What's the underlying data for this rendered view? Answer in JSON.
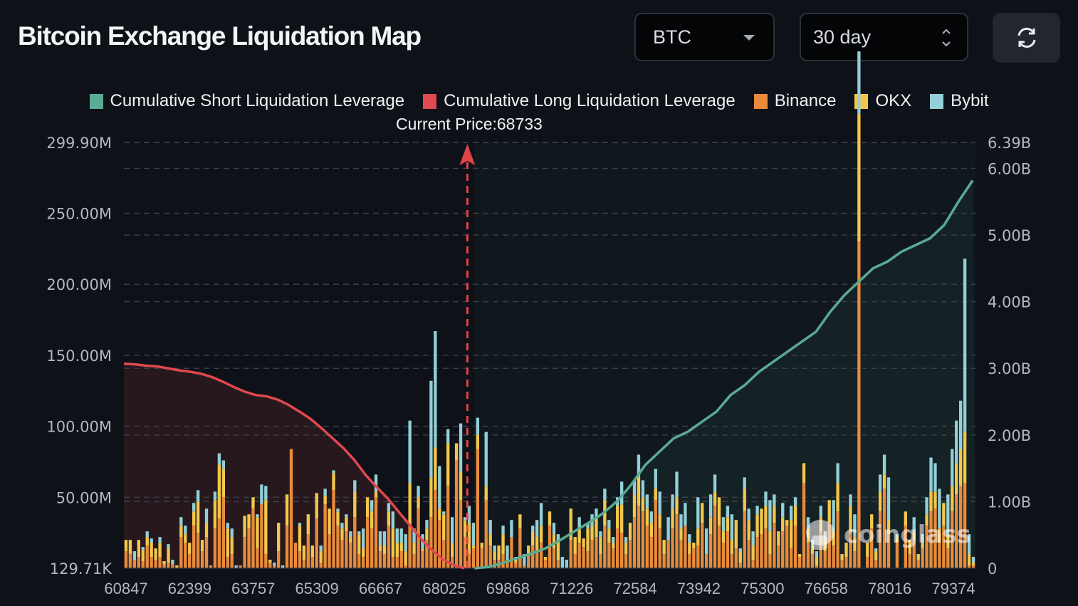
{
  "header": {
    "title": "Bitcoin Exchange Liquidation Map",
    "coin_select": {
      "value": "BTC",
      "icon": "caret-down-icon"
    },
    "range_select": {
      "value": "30 day",
      "icon": "up-down-chevron-icon"
    },
    "refresh_button": {
      "icon": "refresh-icon"
    }
  },
  "watermark": "coinglass",
  "colors": {
    "background": "#0e1117",
    "short_line": "#5aab94",
    "long_line": "#e0494f",
    "binance": "#e88b3a",
    "okx": "#f3c74a",
    "bybit": "#93cfd6"
  },
  "chart_data": {
    "type": "bar",
    "title": "Bitcoin Exchange Liquidation Map",
    "legend": [
      {
        "name": "Cumulative Short Liquidation Leverage",
        "color": "#5aab94"
      },
      {
        "name": "Cumulative Long Liquidation Leverage",
        "color": "#e0494f"
      },
      {
        "name": "Binance",
        "color": "#e88b3a"
      },
      {
        "name": "OKX",
        "color": "#f3c74a"
      },
      {
        "name": "Bybit",
        "color": "#93cfd6"
      }
    ],
    "legend_position": "top-center",
    "current_price": {
      "label": "Current Price:",
      "value": 68733
    },
    "x_ticks": [
      "60847",
      "62399",
      "63757",
      "65309",
      "66667",
      "68025",
      "69868",
      "71226",
      "72584",
      "73942",
      "75300",
      "76658",
      "78016",
      "79374"
    ],
    "x_range": [
      60847,
      80400
    ],
    "y_left": {
      "ticks": [
        "129.71K",
        "50.00M",
        "100.00M",
        "150.00M",
        "200.00M",
        "250.00M",
        "299.90M"
      ],
      "tick_values": [
        0.13,
        50,
        100,
        150,
        200,
        250,
        299.9
      ],
      "range": [
        0,
        299.9
      ],
      "unit": "M"
    },
    "y_right": {
      "ticks": [
        "0",
        "1.00B",
        "2.00B",
        "3.00B",
        "4.00B",
        "5.00B",
        "6.00B",
        "6.39B"
      ],
      "tick_values": [
        0,
        1,
        2,
        3,
        4,
        5,
        6,
        6.39
      ],
      "range": [
        0,
        6.39
      ],
      "unit": "B"
    },
    "grid": true,
    "bars_note": "Stacked per price bucket, values in millions (Binance, OKX, Bybit), approximated from pixels",
    "bars": [
      [
        12,
        8,
        0
      ],
      [
        10,
        10,
        0
      ],
      [
        6,
        0,
        6
      ],
      [
        8,
        12,
        0
      ],
      [
        5,
        8,
        2
      ],
      [
        16,
        6,
        4
      ],
      [
        8,
        10,
        3
      ],
      [
        6,
        8,
        0
      ],
      [
        8,
        10,
        4
      ],
      [
        3,
        2,
        0
      ],
      [
        4,
        10,
        3
      ],
      [
        3,
        0,
        3
      ],
      [
        0,
        2,
        0
      ],
      [
        22,
        8,
        6
      ],
      [
        18,
        6,
        6
      ],
      [
        10,
        8,
        0
      ],
      [
        30,
        10,
        6
      ],
      [
        25,
        22,
        8
      ],
      [
        12,
        8,
        0
      ],
      [
        22,
        10,
        10
      ],
      [
        2,
        0,
        0
      ],
      [
        28,
        20,
        6
      ],
      [
        35,
        38,
        8
      ],
      [
        50,
        20,
        6
      ],
      [
        8,
        20,
        4
      ],
      [
        10,
        12,
        6
      ],
      [
        0,
        0,
        2
      ],
      [
        2,
        0,
        0
      ],
      [
        22,
        15,
        0
      ],
      [
        28,
        10,
        0
      ],
      [
        42,
        8,
        0
      ],
      [
        14,
        22,
        2
      ],
      [
        45,
        0,
        14
      ],
      [
        10,
        38,
        10
      ],
      [
        4,
        2,
        0
      ],
      [
        2,
        0,
        2
      ],
      [
        12,
        20,
        0
      ],
      [
        0,
        0,
        2
      ],
      [
        30,
        22,
        0
      ],
      [
        84,
        0,
        0
      ],
      [
        18,
        0,
        0
      ],
      [
        12,
        18,
        2
      ],
      [
        6,
        10,
        0
      ],
      [
        24,
        14,
        0
      ],
      [
        8,
        8,
        0
      ],
      [
        35,
        18,
        0
      ],
      [
        4,
        8,
        4
      ],
      [
        45,
        6,
        5
      ],
      [
        24,
        18,
        0
      ],
      [
        55,
        12,
        2
      ],
      [
        30,
        10,
        2
      ],
      [
        20,
        8,
        4
      ],
      [
        26,
        10,
        2
      ],
      [
        18,
        4,
        4
      ],
      [
        36,
        18,
        8
      ],
      [
        10,
        14,
        2
      ],
      [
        8,
        6,
        14
      ],
      [
        36,
        14,
        0
      ],
      [
        28,
        12,
        8
      ],
      [
        50,
        4,
        12
      ],
      [
        12,
        4,
        10
      ],
      [
        10,
        6,
        10
      ],
      [
        30,
        10,
        6
      ],
      [
        8,
        20,
        12
      ],
      [
        8,
        10,
        10
      ],
      [
        12,
        6,
        10
      ],
      [
        2,
        10,
        12
      ],
      [
        30,
        30,
        44
      ],
      [
        10,
        8,
        10
      ],
      [
        42,
        8,
        8
      ],
      [
        12,
        2,
        10
      ],
      [
        20,
        8,
        6
      ],
      [
        36,
        28,
        68
      ],
      [
        55,
        30,
        82
      ],
      [
        34,
        8,
        30
      ],
      [
        20,
        18,
        2
      ],
      [
        58,
        30,
        10
      ],
      [
        8,
        10,
        18
      ],
      [
        76,
        12,
        0
      ],
      [
        48,
        20,
        34
      ],
      [
        22,
        12,
        2
      ],
      [
        10,
        22,
        12
      ],
      [
        14,
        2,
        16
      ],
      [
        84,
        10,
        12
      ],
      [
        14,
        4,
        0
      ],
      [
        48,
        10,
        38
      ],
      [
        16,
        8,
        10
      ],
      [
        6,
        6,
        4
      ],
      [
        6,
        10,
        0
      ],
      [
        10,
        14,
        6
      ],
      [
        4,
        2,
        10
      ],
      [
        22,
        0,
        12
      ],
      [
        4,
        2,
        2
      ],
      [
        28,
        10,
        0
      ],
      [
        2,
        0,
        8
      ],
      [
        10,
        6,
        0
      ],
      [
        16,
        10,
        4
      ],
      [
        12,
        10,
        12
      ],
      [
        18,
        12,
        16
      ],
      [
        6,
        2,
        0
      ],
      [
        30,
        10,
        0
      ],
      [
        14,
        10,
        8
      ],
      [
        6,
        14,
        4
      ],
      [
        0,
        0,
        8
      ],
      [
        0,
        0,
        6
      ],
      [
        20,
        22,
        0
      ],
      [
        10,
        12,
        0
      ],
      [
        18,
        10,
        8
      ],
      [
        15,
        6,
        0
      ],
      [
        12,
        16,
        4
      ],
      [
        20,
        10,
        8
      ],
      [
        22,
        14,
        6
      ],
      [
        10,
        12,
        4
      ],
      [
        30,
        18,
        8
      ],
      [
        18,
        10,
        6
      ],
      [
        14,
        4,
        4
      ],
      [
        28,
        16,
        6
      ],
      [
        25,
        20,
        16
      ],
      [
        10,
        8,
        4
      ],
      [
        20,
        12,
        0
      ],
      [
        36,
        16,
        10
      ],
      [
        44,
        20,
        16
      ],
      [
        40,
        10,
        12
      ],
      [
        30,
        12,
        10
      ],
      [
        22,
        10,
        8
      ],
      [
        48,
        8,
        14
      ],
      [
        28,
        10,
        16
      ],
      [
        10,
        10,
        0
      ],
      [
        20,
        0,
        16
      ],
      [
        28,
        14,
        10
      ],
      [
        38,
        12,
        18
      ],
      [
        20,
        8,
        10
      ],
      [
        30,
        0,
        16
      ],
      [
        10,
        8,
        6
      ],
      [
        14,
        4,
        0
      ],
      [
        16,
        12,
        22
      ],
      [
        32,
        14,
        0
      ],
      [
        10,
        0,
        18
      ],
      [
        24,
        12,
        16
      ],
      [
        44,
        10,
        12
      ],
      [
        30,
        20,
        0
      ],
      [
        18,
        8,
        10
      ],
      [
        26,
        10,
        8
      ],
      [
        10,
        10,
        18
      ],
      [
        14,
        20,
        0
      ],
      [
        4,
        8,
        2
      ],
      [
        40,
        16,
        8
      ],
      [
        20,
        14,
        8
      ],
      [
        6,
        10,
        10
      ],
      [
        22,
        16,
        6
      ],
      [
        24,
        18,
        0
      ],
      [
        28,
        16,
        10
      ],
      [
        10,
        16,
        22
      ],
      [
        32,
        12,
        8
      ],
      [
        16,
        10,
        0
      ],
      [
        26,
        10,
        10
      ],
      [
        30,
        4,
        0
      ],
      [
        14,
        20,
        10
      ],
      [
        30,
        14,
        6
      ],
      [
        8,
        2,
        0
      ],
      [
        60,
        14,
        0
      ],
      [
        18,
        10,
        8
      ],
      [
        10,
        6,
        4
      ],
      [
        2,
        6,
        4
      ],
      [
        26,
        10,
        8
      ],
      [
        12,
        8,
        6
      ],
      [
        32,
        16,
        0
      ],
      [
        16,
        10,
        22
      ],
      [
        40,
        20,
        14
      ],
      [
        6,
        4,
        0
      ],
      [
        8,
        10,
        0
      ],
      [
        26,
        18,
        8
      ],
      [
        12,
        10,
        16
      ],
      [
        230,
        90,
        44
      ],
      [
        0,
        0,
        0
      ],
      [
        8,
        10,
        0
      ],
      [
        28,
        10,
        0
      ],
      [
        6,
        6,
        2
      ],
      [
        40,
        14,
        12
      ],
      [
        56,
        10,
        14
      ],
      [
        24,
        10,
        30
      ],
      [
        0,
        0,
        0
      ],
      [
        18,
        4,
        2
      ],
      [
        0,
        0,
        0
      ],
      [
        30,
        10,
        0
      ],
      [
        10,
        10,
        0
      ],
      [
        20,
        6,
        10
      ],
      [
        6,
        4,
        0
      ],
      [
        14,
        4,
        6
      ],
      [
        30,
        8,
        12
      ],
      [
        40,
        14,
        24
      ],
      [
        42,
        12,
        20
      ],
      [
        18,
        10,
        28
      ],
      [
        30,
        16,
        0
      ],
      [
        14,
        10,
        28
      ],
      [
        40,
        18,
        26
      ],
      [
        52,
        22,
        30
      ],
      [
        58,
        26,
        34
      ],
      [
        60,
        36,
        122
      ],
      [
        2,
        8,
        14
      ],
      [
        2,
        2,
        4
      ]
    ],
    "cumulative_long_B": [
      3.07,
      3.06,
      3.04,
      3.03,
      3.0,
      2.97,
      2.95,
      2.92,
      2.87,
      2.8,
      2.72,
      2.65,
      2.6,
      2.58,
      2.53,
      2.45,
      2.35,
      2.24,
      2.1,
      1.95,
      1.8,
      1.62,
      1.4,
      1.22,
      1.05,
      0.85,
      0.65,
      0.45,
      0.28,
      0.14,
      0.05,
      0.0
    ],
    "cumulative_short_B": [
      0.0,
      0.02,
      0.08,
      0.15,
      0.22,
      0.3,
      0.42,
      0.55,
      0.68,
      0.82,
      1.0,
      1.25,
      1.55,
      1.75,
      1.95,
      2.05,
      2.2,
      2.35,
      2.6,
      2.75,
      2.95,
      3.1,
      3.25,
      3.4,
      3.55,
      3.85,
      4.1,
      4.3,
      4.5,
      4.6,
      4.75,
      4.85,
      4.95,
      5.15,
      5.5,
      5.82
    ]
  }
}
